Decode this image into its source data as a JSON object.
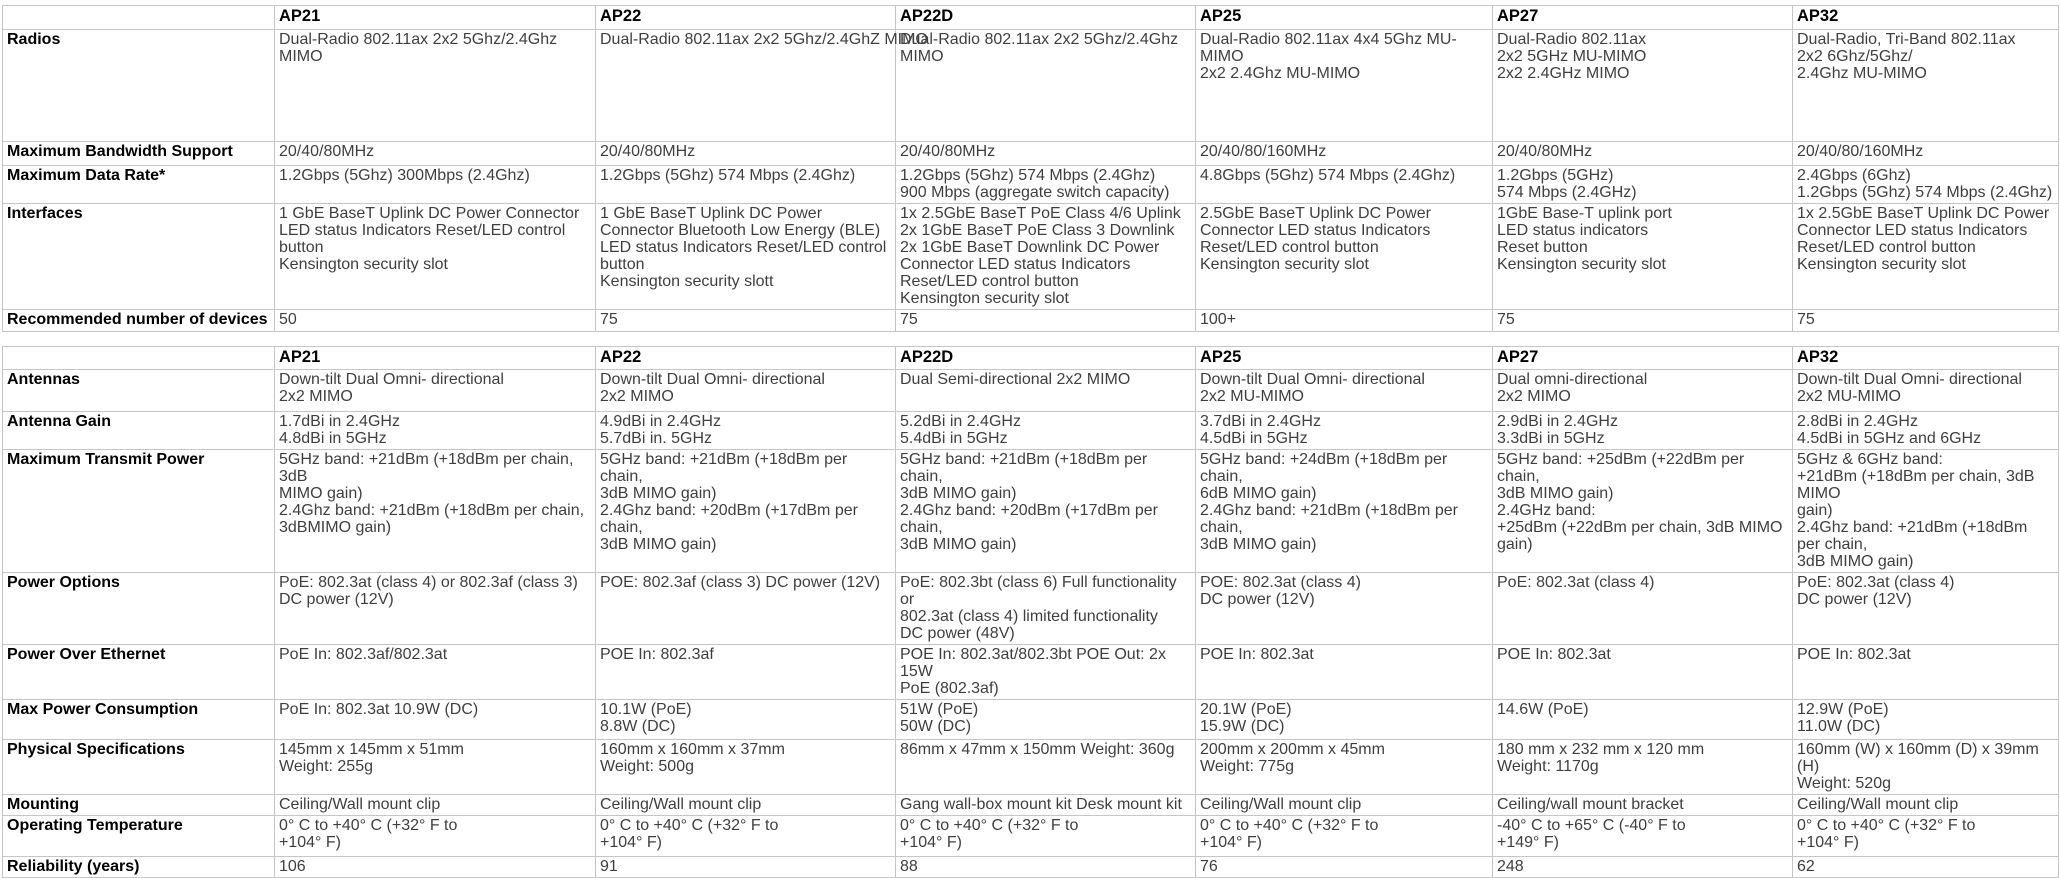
{
  "page": {
    "background": "#ffffff",
    "grid_color": "#c6c6c6",
    "body_text_color": "#3f3f3f",
    "header_text_color": "#000000"
  },
  "products": [
    "AP21",
    "AP22",
    "AP22D",
    "AP25",
    "AP27",
    "AP32"
  ],
  "tables": [
    {
      "name": "general-specs",
      "corner": "",
      "columns": [
        "AP21",
        "AP22",
        "AP22D",
        "AP25",
        "AP27",
        "AP32"
      ],
      "rows": [
        {
          "label": "Radios",
          "cells": [
            "Dual-Radio 802.11ax 2x2 5Ghz/2.4Ghz\nMIMO",
            "Dual-Radio 802.11ax 2x2 5Ghz/2.4GhZ MIMO",
            "Dual-Radio 802.11ax 2x2 5Ghz/2.4Ghz\nMIMO",
            "Dual-Radio 802.11ax 4x4 5Ghz MU-MIMO\n2x2 2.4Ghz MU-MIMO",
            "Dual-Radio 802.11ax\n2x2 5GHz MU-MIMO\n2x2 2.4GHz MIMO",
            "Dual-Radio, Tri-Band 802.11ax\n2x2 6Ghz/5Ghz/\n2.4Ghz MU-MIMO"
          ]
        },
        {
          "label": "Maximum Bandwidth Support",
          "cells": [
            "20/40/80MHz",
            "20/40/80MHz",
            "20/40/80MHz",
            "20/40/80/160MHz",
            "20/40/80MHz",
            "20/40/80/160MHz"
          ]
        },
        {
          "label": "Maximum Data Rate*",
          "cells": [
            "1.2Gbps (5Ghz) 300Mbps (2.4Ghz)",
            "1.2Gbps (5Ghz) 574 Mbps (2.4Ghz)",
            "1.2Gbps (5Ghz) 574 Mbps (2.4Ghz)\n900 Mbps (aggregate switch capacity)",
            "4.8Gbps (5Ghz) 574 Mbps (2.4Ghz)",
            "1.2Gbps (5GHz)\n574 Mbps (2.4GHz)",
            "2.4Gbps (6Ghz)\n1.2Gbps (5Ghz) 574 Mbps (2.4Ghz)"
          ]
        },
        {
          "label": "Interfaces",
          "cells": [
            "1 GbE BaseT Uplink DC Power Connector\nLED status Indicators Reset/LED control\nbutton\nKensington security slot",
            "1 GbE BaseT Uplink DC Power\nConnector Bluetooth Low Energy (BLE)\nLED status Indicators Reset/LED control\nbutton\nKensington security slott",
            "1x 2.5GbE BaseT PoE Class 4/6 Uplink\n2x 1GbE BaseT PoE Class 3 Downlink\n2x 1GbE BaseT Downlink DC Power\nConnector  LED status Indicators\nReset/LED control  button\nKensington security slot",
            "2.5GbE BaseT Uplink DC Power\nConnector LED status Indicators\nReset/LED control button\nKensington security slot",
            "1GbE Base-T uplink port\nLED status indicators\nReset button\nKensington security slot",
            "1x 2.5GbE BaseT Uplink DC Power\nConnector LED status Indicators\nReset/LED control  button\nKensington security slot"
          ]
        },
        {
          "label": "Recommended number of devices",
          "cells": [
            "50",
            "75",
            "75",
            "100+",
            "75",
            "75"
          ]
        }
      ]
    },
    {
      "name": "antenna-power-physical-specs",
      "corner": "",
      "columns": [
        "AP21",
        "AP22",
        "AP22D",
        "AP25",
        "AP27",
        "AP32"
      ],
      "rows": [
        {
          "label": "Antennas",
          "cells": [
            "Down-tilt Dual Omni- directional\n2x2 MIMO",
            "Down-tilt Dual Omni- directional\n2x2 MIMO",
            "Dual Semi-directional 2x2 MIMO",
            "Down-tilt Dual Omni- directional\n2x2 MU-MIMO",
            "Dual omni-directional\n2x2 MIMO",
            "Down-tilt Dual Omni- directional\n2x2 MU-MIMO"
          ]
        },
        {
          "label": "Antenna Gain",
          "cells": [
            "1.7dBi in 2.4GHz\n4.8dBi in 5GHz",
            "4.9dBi in 2.4GHz\n5.7dBi in. 5GHz",
            "5.2dBi in 2.4GHz\n5.4dBi in 5GHz",
            "3.7dBi in 2.4GHz\n4.5dBi in 5GHz",
            "2.9dBi in 2.4GHz\n3.3dBi in 5GHz",
            "2.8dBi in 2.4GHz\n4.5dBi in 5GHz and 6GHz"
          ]
        },
        {
          "label": "Maximum Transmit Power",
          "cells": [
            "5GHz band: +21dBm (+18dBm per chain, 3dB\nMIMO gain)\n2.4Ghz band: +21dBm (+18dBm per chain,\n3dBMIMO gain)",
            "5GHz band: +21dBm (+18dBm per chain,\n3dB MIMO gain)\n2.4Ghz band: +20dBm (+17dBm per chain,\n3dB MIMO gain)",
            "5GHz band: +21dBm (+18dBm per chain,\n3dB MIMO gain)\n2.4Ghz band: +20dBm (+17dBm per chain,\n3dB MIMO gain)",
            "5GHz band: +24dBm (+18dBm per chain,\n6dB MIMO gain)\n2.4Ghz band: +21dBm (+18dBm per chain,\n3dB MIMO gain)",
            "5GHz band: +25dBm (+22dBm per chain,\n3dB MIMO gain)\n2.4GHz band:\n+25dBm (+22dBm per chain, 3dB MIMO\ngain)",
            "5GHz & 6GHz band:\n+21dBm (+18dBm per chain, 3dB MIMO\ngain)\n2.4Ghz band: +21dBm (+18dBm per chain,\n3dB MIMO gain)"
          ]
        },
        {
          "label": "Power Options",
          "cells": [
            "PoE: 802.3at (class 4) or 802.3af (class 3)\nDC power (12V)",
            "POE: 802.3af (class 3) DC power (12V)",
            "PoE: 802.3bt (class 6) Full functionality or\n802.3at (class 4) limited functionality\nDC power (48V)",
            "POE: 802.3at (class 4)\nDC power (12V)",
            "PoE: 802.3at (class 4)",
            "PoE: 802.3at (class 4)\nDC power (12V)"
          ]
        },
        {
          "label": "Power Over Ethernet",
          "cells": [
            "PoE In: 802.3af/802.3at",
            "POE In: 802.3af",
            "POE In: 802.3at/802.3bt POE Out: 2x 15W\nPoE (802.3af)",
            "POE In: 802.3at",
            "POE In: 802.3at",
            "POE In: 802.3at"
          ]
        },
        {
          "label": "Max Power Consumption",
          "cells": [
            "PoE In: 802.3at 10.9W (DC)",
            "10.1W (PoE)\n8.8W (DC)",
            "51W (PoE)\n50W (DC)",
            "20.1W (PoE)\n15.9W (DC)",
            "14.6W (PoE)",
            "12.9W (PoE)\n11.0W (DC)"
          ]
        },
        {
          "label": "Physical Specifications",
          "cells": [
            "145mm x 145mm x 51mm\nWeight: 255g",
            "160mm x 160mm x 37mm\nWeight: 500g",
            "86mm x 47mm x 150mm Weight: 360g",
            "200mm x 200mm x 45mm\nWeight: 775g",
            "180 mm x 232 mm x 120 mm\nWeight: 1170g",
            "160mm (W) x 160mm (D) x 39mm (H)\nWeight: 520g"
          ]
        },
        {
          "label": "Mounting",
          "cells": [
            "Ceiling/Wall mount clip",
            "Ceiling/Wall mount clip",
            "Gang wall-box mount kit Desk mount kit",
            "Ceiling/Wall mount clip",
            "Ceiling/wall mount bracket",
            "Ceiling/Wall mount clip"
          ]
        },
        {
          "label": "Operating Temperature",
          "cells": [
            "0° C to +40° C (+32° F to\n+104° F)",
            "0° C to +40° C (+32° F to\n+104° F)",
            "0° C to +40° C (+32° F to\n+104° F)",
            "0° C to +40° C (+32° F to\n+104° F)",
            "-40° C to +65° C (-40° F to\n+149° F)",
            "0° C to +40° C (+32° F to\n+104° F)"
          ]
        },
        {
          "label": "Reliability (years)",
          "cells": [
            "106",
            "91",
            "88",
            "76",
            "248",
            "62"
          ]
        }
      ]
    }
  ]
}
